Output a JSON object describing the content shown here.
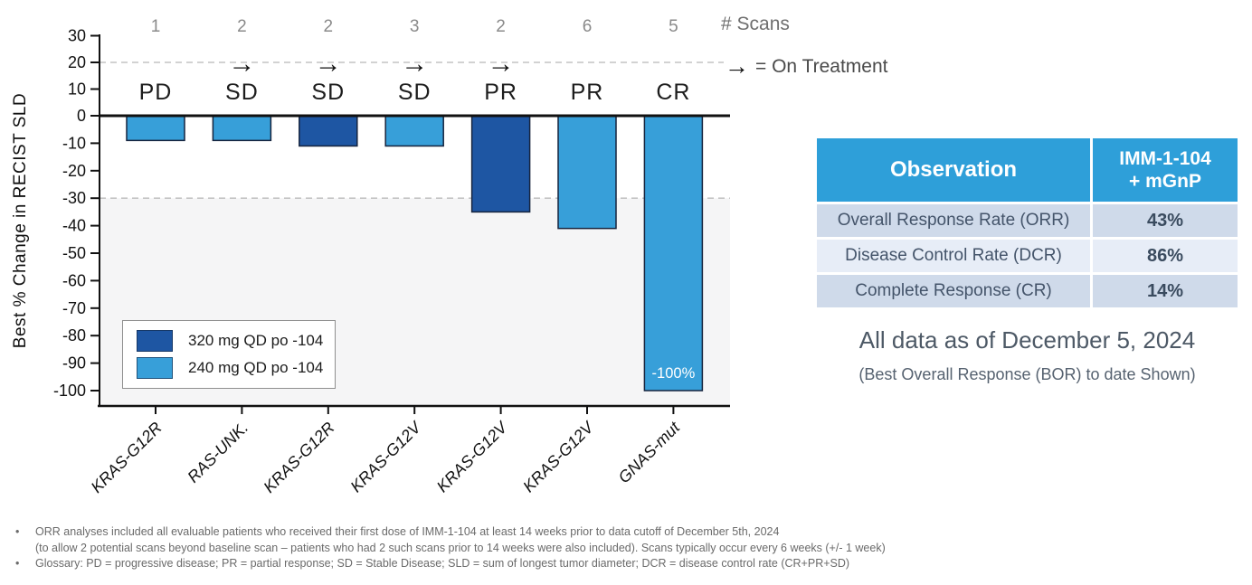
{
  "chart_data": {
    "type": "bar",
    "title": "",
    "xlabel": "",
    "ylabel": "Best % Change in RECIST SLD",
    "ylim": [
      -100,
      30
    ],
    "ytick_step": 10,
    "grid": "off",
    "categories": [
      "KRAS-G12R",
      "RAS-UNK.",
      "KRAS-G12R",
      "KRAS-G12V",
      "KRAS-G12V",
      "KRAS-G12V",
      "GNAS-mut"
    ],
    "values": [
      -9,
      -9,
      -11,
      -11,
      -35,
      -41,
      -100
    ],
    "responses": [
      "PD",
      "SD",
      "SD",
      "SD",
      "PR",
      "PR",
      "CR"
    ],
    "scans": [
      1,
      2,
      2,
      3,
      2,
      6,
      5
    ],
    "on_treatment": [
      false,
      true,
      true,
      true,
      true,
      false,
      false
    ],
    "dose_groups": [
      "240 mg QD po -104",
      "240 mg QD po -104",
      "320 mg QD po -104",
      "240 mg QD po -104",
      "320 mg QD po -104",
      "240 mg QD po -104",
      "240 mg QD po -104"
    ],
    "bar_value_labels": [
      "",
      "",
      "",
      "",
      "",
      "",
      "-100%"
    ],
    "reference_lines": [
      20,
      -30
    ],
    "shade_below": -30,
    "scans_axis_label": "# Scans",
    "on_treatment_legend": {
      "arrow": "→",
      "text": "= On Treatment"
    },
    "legend": {
      "position": "lower-left",
      "items": [
        {
          "label": "320 mg QD po -104",
          "color_key": "darkBlue"
        },
        {
          "label": "240 mg QD po -104",
          "color_key": "lightBlue"
        }
      ]
    }
  },
  "colors": {
    "lightBlue": "#379FD9",
    "darkBlue": "#1E56A3",
    "barBorder": "#16243E",
    "tableHeader": "#2E9FD9",
    "rowDark": "#CFDAEA",
    "rowLight": "#E7EDF7",
    "tableText": "#44546A",
    "tableValue": "#3A4B5F",
    "headingText": "#4D5966",
    "noteText": "#6A6A6A",
    "shade": "#F5F5F6",
    "dashed": "#C4C4C4",
    "grayText": "#8A8A8A"
  },
  "table": {
    "header": [
      "Observation",
      "IMM-1-104\n+ mGnP"
    ],
    "rows": [
      {
        "label": "Overall Response Rate (ORR)",
        "value": "43%"
      },
      {
        "label": "Disease Control Rate (DCR)",
        "value": "86%"
      },
      {
        "label": "Complete Response (CR)",
        "value": "14%"
      }
    ]
  },
  "right_panel": {
    "as_of": "All data as of December 5, 2024",
    "bor_note": "(Best Overall Response (BOR) to date Shown)"
  },
  "footnotes": {
    "bullet": "•",
    "items": [
      {
        "lines": [
          "ORR analyses included all evaluable patients who received their first dose of IMM-1-104 at least 14 weeks prior to data cutoff of December 5th, 2024",
          "(to allow 2 potential scans beyond baseline scan – patients who had 2 such scans prior to 14 weeks were also included). Scans typically occur every 6 weeks (+/- 1 week)"
        ]
      },
      {
        "lines": [
          "Glossary: PD = progressive disease; PR = partial response; SD = Stable Disease; SLD = sum of longest tumor diameter; DCR = disease control rate (CR+PR+SD)"
        ]
      }
    ]
  }
}
